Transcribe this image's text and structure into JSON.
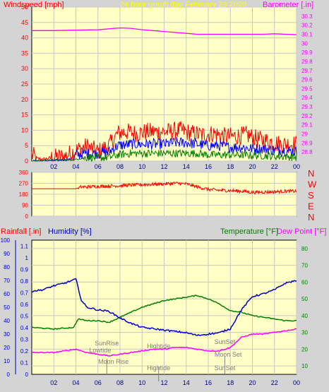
{
  "colors": {
    "background": "#d4d4d4",
    "plot_bg": "#ffffc6",
    "grid": "#c8c8c8",
    "wind": "#ff0000",
    "wind_mid": "#0000ff",
    "wind_low": "#008000",
    "barometer": "#ff00ff",
    "direction": "#ff0000",
    "rain_axis": "#ff0000",
    "humidity": "#0000c8",
    "temperature": "#008000",
    "dewpoint": "#ff00ff",
    "event_label": "#808080"
  },
  "top": {
    "title_left": "Windspeed [mph]",
    "title_center": "24 hour graph day    February 23 2020",
    "title_right": "Barometer [.in]"
  },
  "middle": {
    "compass_labels": [
      "N",
      "W",
      "S",
      "E",
      "N"
    ]
  },
  "bottom": {
    "label_rain": "Rainfall [.in]",
    "label_humidity": "Humidity [%]",
    "label_temp": "Temperature [°F]",
    "label_dew": "Dew Point [°F]",
    "events": [
      {
        "label": "SunRise",
        "x": 6.8,
        "y": 0.75
      },
      {
        "label": "Lowtide",
        "x": 6.2,
        "y": 0.25
      },
      {
        "label": "Moon Rise",
        "x": 7.4,
        "y": -0.55
      },
      {
        "label": "Hightide",
        "x": 11.5,
        "y": 0.55
      },
      {
        "label": "Hightide",
        "x": 11.5,
        "y": -1.0
      },
      {
        "label": "SunSet",
        "x": 17.5,
        "y": 0.85
      },
      {
        "label": "Moon Set",
        "x": 17.8,
        "y": -0.05
      },
      {
        "label": "SunSet",
        "x": 17.5,
        "y": -1.0
      }
    ]
  },
  "chart_data": [
    {
      "type": "line",
      "title": "24 hour graph day    February 23 2020",
      "xlabel": "",
      "ylabel": "Windspeed [mph]",
      "y2label": "Barometer [.in]",
      "x_ticks": [
        "02",
        "04",
        "06",
        "08",
        "10",
        "12",
        "14",
        "16",
        "18",
        "20",
        "22",
        "00"
      ],
      "xlim": [
        0,
        24
      ],
      "ylim": [
        0,
        50
      ],
      "y_ticks": [
        0,
        5,
        10,
        15,
        20,
        25,
        30,
        35,
        40,
        45,
        50
      ],
      "y2lim": [
        28.7,
        30.4
      ],
      "y2_ticks": [
        "28.8",
        "28.9",
        "29",
        "29.1",
        "29.2",
        "29.3",
        "29.4",
        "29.5",
        "29.6",
        "29.7",
        "29.8",
        "29.9",
        "30",
        "30.1",
        "30.2",
        "30.3"
      ],
      "series": [
        {
          "name": "",
          "axis": "right",
          "points": [
            [
              0,
              30.14
            ],
            [
              2,
              30.14
            ],
            [
              4,
              30.145
            ],
            [
              6,
              30.15
            ],
            [
              7,
              30.16
            ],
            [
              8,
              30.17
            ],
            [
              9,
              30.165
            ],
            [
              10,
              30.15
            ],
            [
              11,
              30.14
            ],
            [
              12,
              30.13
            ],
            [
              13,
              30.12
            ],
            [
              14,
              30.11
            ],
            [
              15,
              30.1
            ],
            [
              16,
              30.1
            ],
            [
              17,
              30.1
            ],
            [
              18,
              30.1
            ],
            [
              19,
              30.1
            ],
            [
              20,
              30.1
            ],
            [
              21,
              30.1
            ],
            [
              22,
              30.105
            ],
            [
              23,
              30.1
            ],
            [
              24,
              30.095
            ]
          ]
        },
        {
          "name": "",
          "axis": "left",
          "style": "gust",
          "points": [
            [
              0,
              2
            ],
            [
              0.5,
              0.8
            ],
            [
              1,
              0.5
            ],
            [
              2,
              1.2
            ],
            [
              3,
              1.5
            ],
            [
              4,
              3.5
            ],
            [
              5,
              4.8
            ],
            [
              6,
              3
            ],
            [
              7,
              5
            ],
            [
              7.8,
              9
            ],
            [
              8.5,
              9.5
            ],
            [
              9.5,
              9
            ],
            [
              10.5,
              9.5
            ],
            [
              11.5,
              9.5
            ],
            [
              12.5,
              9.5
            ],
            [
              13.5,
              10
            ],
            [
              14.5,
              9
            ],
            [
              15.5,
              8.5
            ],
            [
              16.5,
              9
            ],
            [
              17.5,
              8
            ],
            [
              18.5,
              8
            ],
            [
              19.5,
              8.5
            ],
            [
              20.5,
              7
            ],
            [
              21.5,
              6.5
            ],
            [
              22.5,
              5.5
            ],
            [
              23.5,
              5.5
            ]
          ]
        },
        {
          "name": "",
          "axis": "left",
          "style": "average",
          "points": [
            [
              0,
              0
            ],
            [
              3.8,
              0.5
            ],
            [
              4,
              2
            ],
            [
              5,
              2.5
            ],
            [
              6,
              2.5
            ],
            [
              7,
              3
            ],
            [
              7.8,
              5
            ],
            [
              9,
              5.5
            ],
            [
              10,
              5.5
            ],
            [
              11,
              5.5
            ],
            [
              12,
              5.5
            ],
            [
              13,
              6
            ],
            [
              14,
              6
            ],
            [
              15,
              5.5
            ],
            [
              16,
              5
            ],
            [
              17,
              5
            ],
            [
              18,
              4.5
            ],
            [
              19,
              4.5
            ],
            [
              20,
              4
            ],
            [
              21,
              4
            ],
            [
              22,
              3.5
            ],
            [
              23,
              3.5
            ],
            [
              24,
              3
            ]
          ]
        },
        {
          "name": "",
          "axis": "left",
          "style": "lull",
          "points": [
            [
              0,
              0
            ],
            [
              4,
              0.5
            ],
            [
              5,
              1.2
            ],
            [
              6,
              1
            ],
            [
              7,
              1.2
            ],
            [
              7.8,
              2
            ],
            [
              9,
              2.5
            ],
            [
              10,
              2.5
            ],
            [
              11,
              2.5
            ],
            [
              12,
              2.5
            ],
            [
              13,
              2.5
            ],
            [
              14,
              2.5
            ],
            [
              15,
              2.5
            ],
            [
              16,
              2
            ],
            [
              17,
              2
            ],
            [
              18,
              2
            ],
            [
              19,
              2
            ],
            [
              20,
              1.8
            ],
            [
              21,
              1.8
            ],
            [
              22,
              1.5
            ],
            [
              23,
              1.5
            ],
            [
              24,
              1.2
            ]
          ]
        }
      ]
    },
    {
      "type": "line",
      "title": "",
      "ylabel": "",
      "xlim": [
        0,
        24
      ],
      "ylim": [
        0,
        360
      ],
      "y_ticks": [
        0,
        90,
        180,
        270,
        360
      ],
      "y_tick_labels": [
        "0",
        "90",
        "180",
        "270",
        "360"
      ],
      "series": [
        {
          "name": "",
          "points": [
            [
              0,
              225
            ],
            [
              2,
              225
            ],
            [
              4,
              225
            ],
            [
              4.5,
              240
            ],
            [
              5,
              240
            ],
            [
              6,
              245
            ],
            [
              7,
              248
            ],
            [
              8,
              250
            ],
            [
              9,
              255
            ],
            [
              10,
              258
            ],
            [
              11,
              262
            ],
            [
              12,
              265
            ],
            [
              13,
              270
            ],
            [
              14,
              265
            ],
            [
              15,
              240
            ],
            [
              16,
              220
            ],
            [
              17,
              212
            ],
            [
              18,
              210
            ],
            [
              19,
              205
            ],
            [
              20,
              195
            ],
            [
              21,
              198
            ],
            [
              22,
              200
            ],
            [
              23,
              205
            ],
            [
              24,
              205
            ]
          ]
        }
      ]
    },
    {
      "type": "line",
      "title": "",
      "xlabel": "",
      "ylabel": "Rainfall [.in]",
      "y2label": "Humidity [%]",
      "y3label": "Temperature [°F]",
      "y4label": "Dew Point [°F]",
      "xlim": [
        0,
        24
      ],
      "x_ticks": [
        "02",
        "04",
        "06",
        "08",
        "10",
        "12",
        "14",
        "16",
        "18",
        "20",
        "22",
        "00"
      ],
      "rain_ticks": [
        "0",
        "0.1",
        "0.2",
        "0.3",
        "0.4",
        "0.5",
        "0.6",
        "0.7",
        "0.8",
        "0.9",
        "1",
        "1.1"
      ],
      "humidity_ticks": [
        0,
        10,
        20,
        30,
        40,
        50,
        60,
        70,
        80,
        90,
        100
      ],
      "temp_ticks": [
        10,
        20,
        30,
        40,
        50,
        60,
        70,
        80
      ],
      "humidity_ylim": [
        0,
        100
      ],
      "temp_ylim": [
        5,
        85
      ],
      "series": [
        {
          "name": "Humidity [%]",
          "axis": "humidity",
          "points": [
            [
              0,
              62
            ],
            [
              1,
              63
            ],
            [
              2,
              66
            ],
            [
              3,
              68
            ],
            [
              4,
              71
            ],
            [
              4.5,
              55
            ],
            [
              5,
              50
            ],
            [
              6,
              48
            ],
            [
              7,
              47
            ],
            [
              8,
              42
            ],
            [
              9,
              38
            ],
            [
              10,
              35
            ],
            [
              11,
              34
            ],
            [
              12,
              33
            ],
            [
              13,
              32
            ],
            [
              14,
              31
            ],
            [
              15,
              29
            ],
            [
              16,
              30
            ],
            [
              17,
              31
            ],
            [
              18,
              34
            ],
            [
              19,
              48
            ],
            [
              20,
              58
            ],
            [
              21,
              60
            ],
            [
              22,
              63
            ],
            [
              23,
              68
            ],
            [
              24,
              70
            ]
          ]
        },
        {
          "name": "Temperature [°F]",
          "axis": "temp",
          "points": [
            [
              0,
              33
            ],
            [
              2,
              32
            ],
            [
              3.8,
              33
            ],
            [
              4.2,
              38
            ],
            [
              5,
              37
            ],
            [
              6,
              37
            ],
            [
              7,
              36
            ],
            [
              8,
              39
            ],
            [
              9,
              42
            ],
            [
              10,
              45
            ],
            [
              11,
              47
            ],
            [
              12,
              49
            ],
            [
              13,
              50
            ],
            [
              14,
              51
            ],
            [
              15,
              52
            ],
            [
              16,
              50
            ],
            [
              17,
              47
            ],
            [
              18,
              43
            ],
            [
              19,
              42
            ],
            [
              20,
              40
            ],
            [
              21,
              39
            ],
            [
              22,
              38
            ],
            [
              23,
              37
            ],
            [
              24,
              37
            ]
          ]
        },
        {
          "name": "Dew Point [°F]",
          "axis": "temp",
          "points": [
            [
              0,
              18
            ],
            [
              2,
              18
            ],
            [
              3,
              19
            ],
            [
              4,
              20
            ],
            [
              5,
              18
            ],
            [
              6,
              17
            ],
            [
              7,
              16
            ],
            [
              8,
              17
            ],
            [
              9,
              18
            ],
            [
              10,
              19
            ],
            [
              11,
              20
            ],
            [
              12,
              20
            ],
            [
              13,
              21
            ],
            [
              14,
              21
            ],
            [
              15,
              20
            ],
            [
              16,
              19
            ],
            [
              17,
              19
            ],
            [
              18,
              21
            ],
            [
              19,
              27
            ],
            [
              20,
              29
            ],
            [
              21,
              29
            ],
            [
              22,
              30
            ],
            [
              23,
              31
            ],
            [
              24,
              32
            ]
          ]
        }
      ]
    }
  ]
}
